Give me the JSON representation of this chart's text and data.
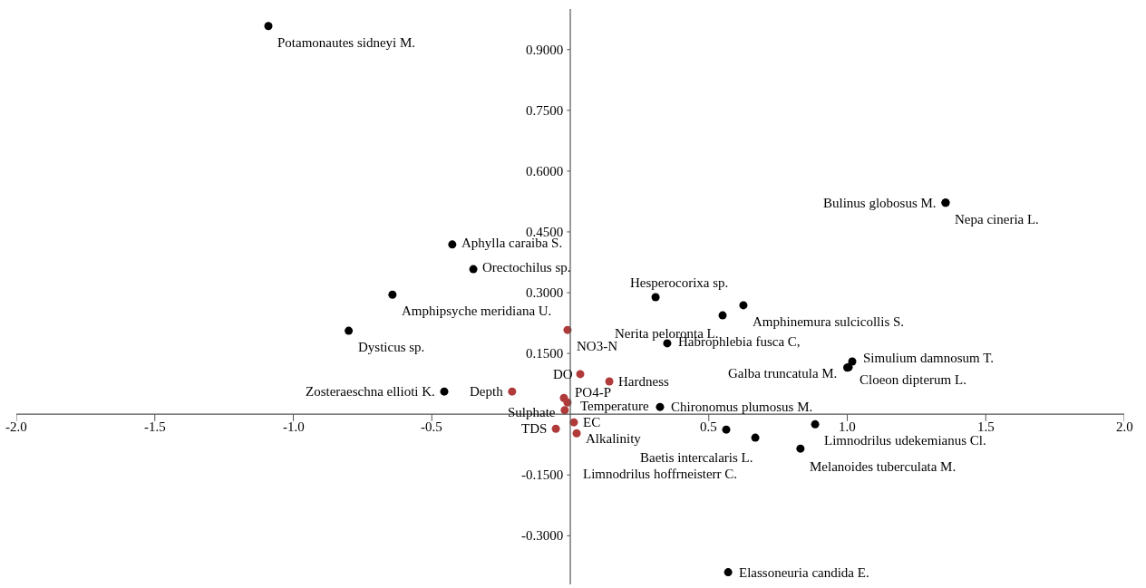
{
  "chart_data": {
    "type": "scatter",
    "marker": "circle",
    "xlim": [
      -2.0,
      2.0
    ],
    "ylim": [
      -0.42,
      1.0
    ],
    "xticks": [
      {
        "value": -2.0,
        "label": "-2.0"
      },
      {
        "value": -1.5,
        "label": "-1.5"
      },
      {
        "value": -1.0,
        "label": "-1.0"
      },
      {
        "value": -0.5,
        "label": "-0.5"
      },
      {
        "value": 0.5,
        "label": "0.5"
      },
      {
        "value": 1.0,
        "label": "1.0"
      },
      {
        "value": 1.5,
        "label": "1.5"
      },
      {
        "value": 2.0,
        "label": "2.0"
      }
    ],
    "yticks": [
      {
        "value": -0.3,
        "label": "-0.3000"
      },
      {
        "value": -0.15,
        "label": "-0.1500"
      },
      {
        "value": 0.15,
        "label": "0.1500"
      },
      {
        "value": 0.3,
        "label": "0.3000"
      },
      {
        "value": 0.45,
        "label": "0.4500"
      },
      {
        "value": 0.6,
        "label": "0.6000"
      },
      {
        "value": 0.75,
        "label": "0.7500"
      },
      {
        "value": 0.9,
        "label": "0.9000"
      }
    ],
    "series": [
      {
        "color": "#000000",
        "x": [
          -1.09,
          -0.426,
          -0.35,
          -0.642,
          -0.8,
          -0.455,
          0.308,
          0.625,
          0.55,
          0.35,
          1.355,
          1.355,
          1.018,
          1.0,
          1.005,
          0.324,
          0.563,
          0.668,
          0.884,
          0.831,
          0.57
        ],
        "values": [
          0.958,
          0.419,
          0.358,
          0.295,
          0.206,
          0.056,
          0.289,
          0.269,
          0.244,
          0.175,
          0.522,
          0.522,
          0.13,
          0.115,
          0.116,
          0.018,
          -0.038,
          -0.058,
          -0.025,
          -0.085,
          -0.39
        ]
      },
      {
        "color": "#b03a3a",
        "x": [
          -0.01,
          0.036,
          0.141,
          -0.21,
          -0.023,
          -0.01,
          -0.02,
          0.013,
          -0.052,
          0.023
        ],
        "values": [
          0.208,
          0.099,
          0.081,
          0.056,
          0.04,
          0.029,
          0.01,
          -0.02,
          -0.036,
          -0.047
        ]
      }
    ],
    "annotations": [
      {
        "text": "Potamonautes sidneyi M.",
        "x": -1.09,
        "y": 0.958
      },
      {
        "text": "Aphylla caraiba S.",
        "x": -0.426,
        "y": 0.419
      },
      {
        "text": "Orectochilus sp.",
        "x": -0.35,
        "y": 0.358
      },
      {
        "text": "Amphipsyche meridiana U.",
        "x": -0.642,
        "y": 0.295
      },
      {
        "text": "Dysticus sp.",
        "x": -0.8,
        "y": 0.206
      },
      {
        "text": "Zosteraeschna ellioti K.",
        "x": -0.455,
        "y": 0.056
      },
      {
        "text": "Hesperocorixa sp.",
        "x": 0.308,
        "y": 0.289
      },
      {
        "text": "Amphinemura sulcicollis S.",
        "x": 0.625,
        "y": 0.269
      },
      {
        "text": "Nerita peloronta L.",
        "x": 0.55,
        "y": 0.244
      },
      {
        "text": "Habrophlebia fusca C,",
        "x": 0.35,
        "y": 0.175
      },
      {
        "text": "Bulinus globosus M.",
        "x": 1.355,
        "y": 0.522
      },
      {
        "text": "Nepa cineria L.",
        "x": 1.355,
        "y": 0.522
      },
      {
        "text": "Simulium damnosum T.",
        "x": 1.018,
        "y": 0.13
      },
      {
        "text": "Galba truncatula M.",
        "x": 1.0,
        "y": 0.115
      },
      {
        "text": "Cloeon dipterum L.",
        "x": 1.005,
        "y": 0.116
      },
      {
        "text": "Chironomus plumosus M.",
        "x": 0.324,
        "y": 0.018
      },
      {
        "text": "Limnodrilus hoffrneisterr C.",
        "x": 0.563,
        "y": -0.038
      },
      {
        "text": "Baetis intercalaris L.",
        "x": 0.668,
        "y": -0.058
      },
      {
        "text": "Limnodrilus udekemianus Cl.",
        "x": 0.884,
        "y": -0.025
      },
      {
        "text": "Melanoides tuberculata M.",
        "x": 0.831,
        "y": -0.085
      },
      {
        "text": "Elassoneuria candida E.",
        "x": 0.57,
        "y": -0.39
      },
      {
        "text": "NO3-N",
        "x": -0.01,
        "y": 0.208
      },
      {
        "text": "DO",
        "x": 0.036,
        "y": 0.099
      },
      {
        "text": "Hardness",
        "x": 0.141,
        "y": 0.081
      },
      {
        "text": "Depth",
        "x": -0.21,
        "y": 0.056
      },
      {
        "text": "PO4-P",
        "x": -0.023,
        "y": 0.04
      },
      {
        "text": "Temperature",
        "x": -0.01,
        "y": 0.029
      },
      {
        "text": "Sulphate",
        "x": -0.02,
        "y": 0.01
      },
      {
        "text": "EC",
        "x": 0.013,
        "y": -0.02
      },
      {
        "text": "TDS",
        "x": -0.052,
        "y": -0.036
      },
      {
        "text": "Alkalinity",
        "x": 0.023,
        "y": -0.047
      }
    ]
  }
}
